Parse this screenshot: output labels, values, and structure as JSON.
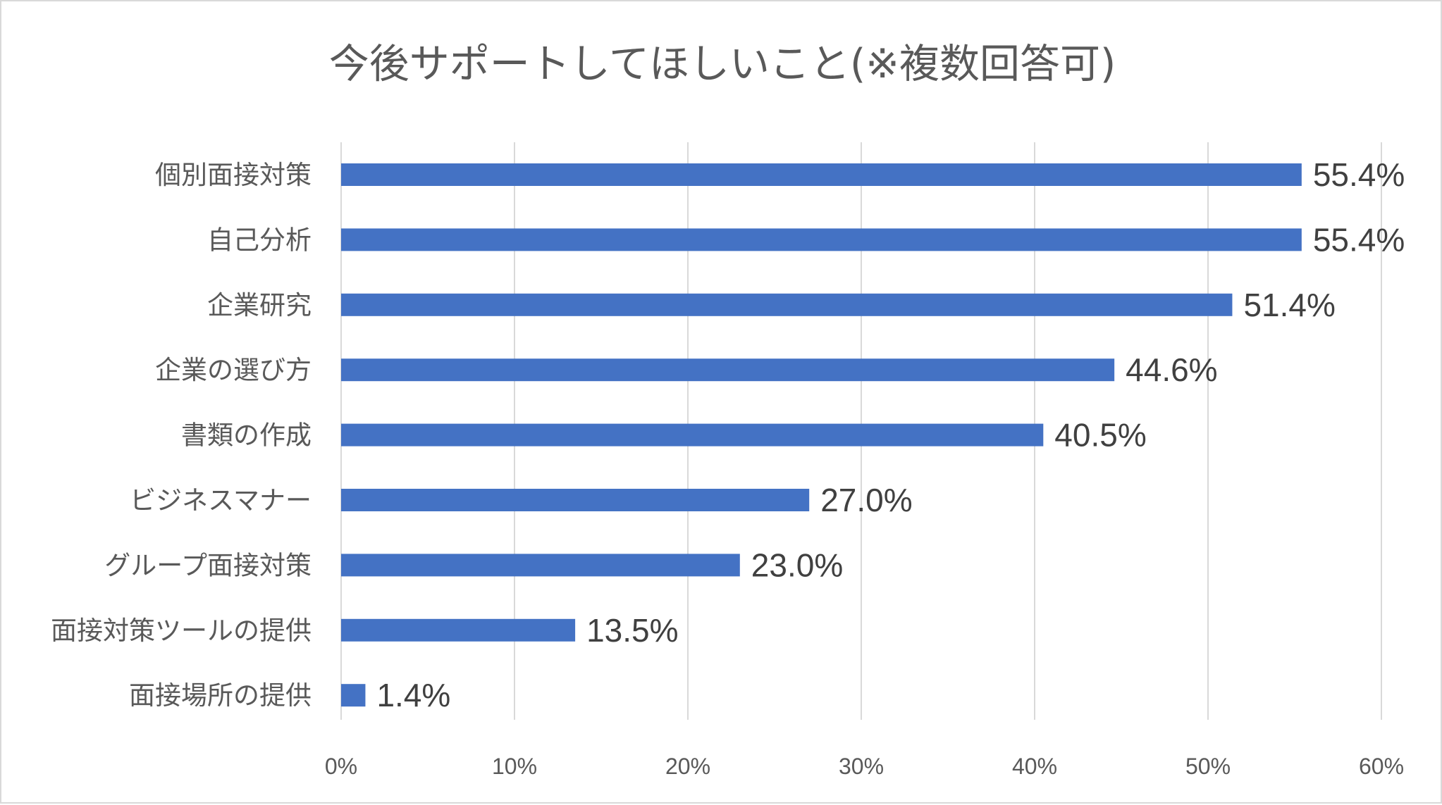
{
  "chart_data": {
    "type": "bar",
    "orientation": "horizontal",
    "title": "今後サポートしてほしいこと(※複数回答可)",
    "xlabel": "",
    "ylabel": "",
    "xlim": [
      0,
      60
    ],
    "x_ticks": [
      0,
      10,
      20,
      30,
      40,
      50,
      60
    ],
    "x_tick_labels": [
      "0%",
      "10%",
      "20%",
      "30%",
      "40%",
      "50%",
      "60%"
    ],
    "grid": "vertical",
    "legend": "none",
    "categories": [
      "個別面接対策",
      "自己分析",
      "企業研究",
      "企業の選び方",
      "書類の作成",
      "ビジネスマナー",
      "グループ面接対策",
      "面接対策ツールの提供",
      "面接場所の提供"
    ],
    "values": [
      55.4,
      55.4,
      51.4,
      44.6,
      40.5,
      27.0,
      23.0,
      13.5,
      1.4
    ],
    "data_labels": [
      "55.4%",
      "55.4%",
      "51.4%",
      "44.6%",
      "40.5%",
      "27.0%",
      "23.0%",
      "13.5%",
      "1.4%"
    ],
    "colors": {
      "bar": "#4472c4",
      "grid": "#d9d9d9",
      "text": "#595959",
      "data_label": "#404040"
    }
  }
}
